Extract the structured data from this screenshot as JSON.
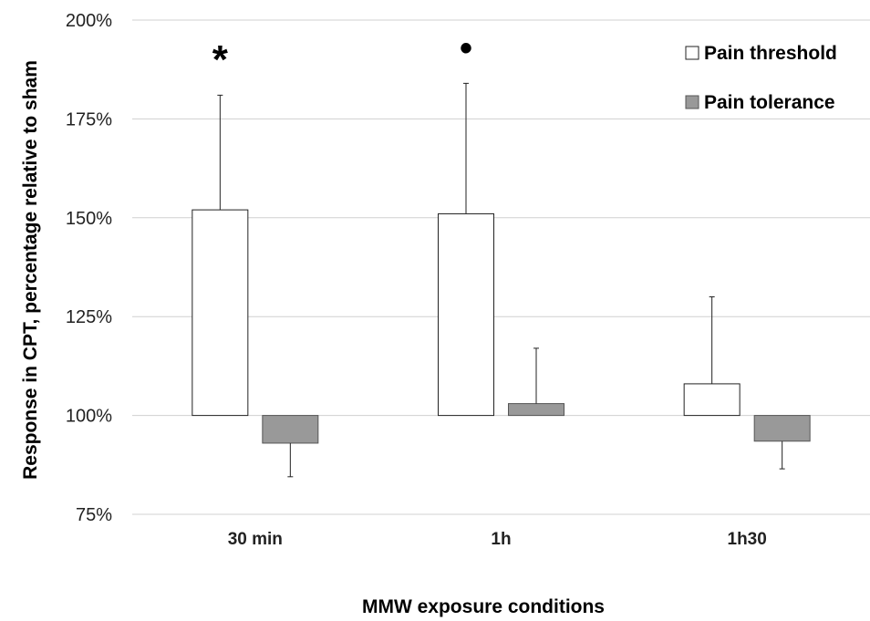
{
  "chart_data": {
    "type": "bar",
    "xlabel": "MMW exposure conditions",
    "ylabel": "Response in CPT, percentage relative to sham",
    "ylim": [
      75,
      200
    ],
    "yticks": [
      75,
      100,
      125,
      150,
      175,
      200
    ],
    "ytick_suffix": "%",
    "baseline": 100,
    "grid": true,
    "legend_position": "top-right",
    "categories": [
      "30 min",
      "1h",
      "1h30"
    ],
    "series": [
      {
        "name": "Pain threshold",
        "color": "#ffffff",
        "values": [
          152,
          151,
          108
        ],
        "error_plus": [
          29,
          33,
          22
        ]
      },
      {
        "name": "Pain tolerance",
        "color": "#999999",
        "values": [
          93,
          103,
          93.5
        ],
        "error_minus": [
          8.5,
          0,
          7
        ]
      }
    ],
    "annotations": [
      {
        "category": "30 min",
        "text": "*",
        "value": 192
      },
      {
        "category": "1h",
        "text": "•",
        "value": 192
      }
    ]
  }
}
